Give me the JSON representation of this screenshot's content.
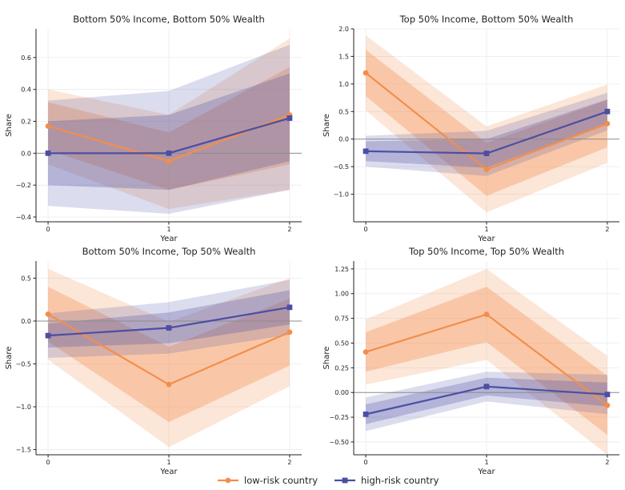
{
  "colors": {
    "low": "#f28e4c",
    "high": "#4b4ea3",
    "zero_line": "#8c8c8c",
    "grid": "#ebebeb"
  },
  "legend": [
    {
      "label": "low-risk country",
      "key": "low",
      "marker": "circle"
    },
    {
      "label": "high-risk country",
      "key": "high",
      "marker": "square"
    }
  ],
  "chart_data": [
    {
      "type": "line",
      "title": "Bottom 50% Income, Bottom 50% Wealth",
      "xlabel": "Year",
      "ylabel": "Share",
      "x": [
        0,
        1,
        2
      ],
      "xticks": [
        "0",
        "1",
        "2"
      ],
      "xlim": [
        -0.1,
        2.1
      ],
      "ylim": [
        -0.43,
        0.78
      ],
      "yticks": [
        -0.4,
        -0.2,
        0.0,
        0.2,
        0.4,
        0.6
      ],
      "yticklabels": [
        "−0.4",
        "−0.2",
        "0.0",
        "0.2",
        "0.4",
        "0.6"
      ],
      "series": [
        {
          "key": "low",
          "values": [
            0.17,
            -0.05,
            0.24
          ],
          "outer": [
            [
              -0.07,
              0.4
            ],
            [
              -0.35,
              0.24
            ],
            [
              -0.23,
              0.72
            ]
          ],
          "inner": [
            [
              0.02,
              0.32
            ],
            [
              -0.23,
              0.13
            ],
            [
              -0.07,
              0.54
            ]
          ]
        },
        {
          "key": "high",
          "values": [
            0.0,
            0.0,
            0.22
          ],
          "outer": [
            [
              -0.33,
              0.33
            ],
            [
              -0.38,
              0.39
            ],
            [
              -0.23,
              0.68
            ]
          ],
          "inner": [
            [
              -0.2,
              0.2
            ],
            [
              -0.23,
              0.24
            ],
            [
              -0.05,
              0.5
            ]
          ]
        }
      ]
    },
    {
      "type": "line",
      "title": "Top 50% Income, Bottom 50% Wealth",
      "xlabel": "Year",
      "ylabel": "Share",
      "x": [
        0,
        1,
        2
      ],
      "xticks": [
        "0",
        "1",
        "2"
      ],
      "xlim": [
        -0.1,
        2.1
      ],
      "ylim": [
        -1.5,
        2.0
      ],
      "yticks": [
        -1.0,
        -0.5,
        0.0,
        0.5,
        1.0,
        1.5,
        2.0
      ],
      "yticklabels": [
        "−1.0",
        "−0.5",
        "0.0",
        "0.5",
        "1.0",
        "1.5",
        "2.0"
      ],
      "series": [
        {
          "key": "low",
          "values": [
            1.2,
            -0.55,
            0.28
          ],
          "outer": [
            [
              0.52,
              1.88
            ],
            [
              -1.33,
              0.23
            ],
            [
              -0.43,
              0.99
            ]
          ],
          "inner": [
            [
              0.78,
              1.62
            ],
            [
              -1.03,
              -0.07
            ],
            [
              -0.15,
              0.71
            ]
          ]
        },
        {
          "key": "high",
          "values": [
            -0.22,
            -0.26,
            0.5
          ],
          "outer": [
            [
              -0.5,
              0.06
            ],
            [
              -0.67,
              0.15
            ],
            [
              0.16,
              0.84
            ]
          ],
          "inner": [
            [
              -0.4,
              -0.04
            ],
            [
              -0.52,
              0.0
            ],
            [
              0.28,
              0.72
            ]
          ]
        }
      ]
    },
    {
      "type": "line",
      "title": "Bottom 50% Income, Top 50% Wealth",
      "xlabel": "Year",
      "ylabel": "Share",
      "x": [
        0,
        1,
        2
      ],
      "xticks": [
        "0",
        "1",
        "2"
      ],
      "xlim": [
        -0.1,
        2.1
      ],
      "ylim": [
        -1.56,
        0.7
      ],
      "yticks": [
        -1.5,
        -1.0,
        -0.5,
        0.0,
        0.5
      ],
      "yticklabels": [
        "−1.5",
        "−1.0",
        "−0.5",
        "0.0",
        "0.5"
      ],
      "series": [
        {
          "key": "low",
          "values": [
            0.08,
            -0.74,
            -0.13
          ],
          "outer": [
            [
              -0.45,
              0.61
            ],
            [
              -1.47,
              -0.01
            ],
            [
              -0.76,
              0.5
            ]
          ],
          "inner": [
            [
              -0.24,
              0.4
            ],
            [
              -1.18,
              -0.3
            ],
            [
              -0.52,
              0.26
            ]
          ]
        },
        {
          "key": "high",
          "values": [
            -0.17,
            -0.08,
            0.16
          ],
          "outer": [
            [
              -0.43,
              0.09
            ],
            [
              -0.38,
              0.22
            ],
            [
              -0.16,
              0.48
            ]
          ],
          "inner": [
            [
              -0.31,
              -0.03
            ],
            [
              -0.26,
              0.1
            ],
            [
              -0.04,
              0.36
            ]
          ]
        }
      ]
    },
    {
      "type": "line",
      "title": "Top 50% Income, Top 50% Wealth",
      "xlabel": "Year",
      "ylabel": "Share",
      "x": [
        0,
        1,
        2
      ],
      "xticks": [
        "0",
        "1",
        "2"
      ],
      "xlim": [
        -0.1,
        2.1
      ],
      "ylim": [
        -0.63,
        1.33
      ],
      "yticks": [
        -0.5,
        -0.25,
        0.0,
        0.25,
        0.5,
        0.75,
        1.0,
        1.25
      ],
      "yticklabels": [
        "−0.50",
        "−0.25",
        "0.00",
        "0.25",
        "0.50",
        "0.75",
        "1.00",
        "1.25"
      ],
      "series": [
        {
          "key": "low",
          "values": [
            0.41,
            0.79,
            -0.13
          ],
          "outer": [
            [
              0.08,
              0.74
            ],
            [
              0.33,
              1.25
            ],
            [
              -0.63,
              0.37
            ]
          ],
          "inner": [
            [
              0.21,
              0.61
            ],
            [
              0.51,
              1.07
            ],
            [
              -0.43,
              0.17
            ]
          ]
        },
        {
          "key": "high",
          "values": [
            -0.22,
            0.06,
            -0.02
          ],
          "outer": [
            [
              -0.39,
              -0.05
            ],
            [
              -0.09,
              0.21
            ],
            [
              -0.22,
              0.18
            ]
          ],
          "inner": [
            [
              -0.32,
              -0.12
            ],
            [
              -0.03,
              0.15
            ],
            [
              -0.14,
              0.1
            ]
          ]
        }
      ]
    }
  ]
}
